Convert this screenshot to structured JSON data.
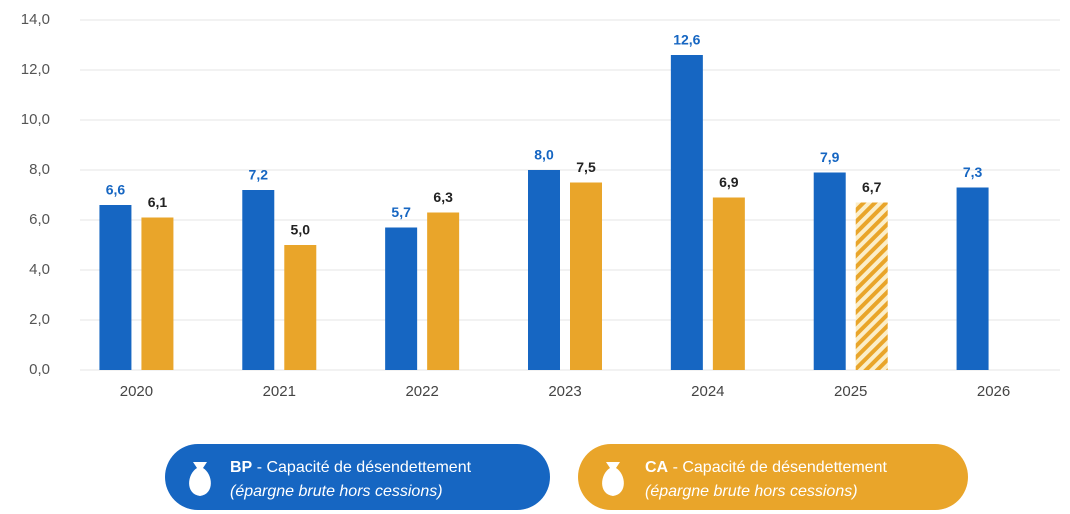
{
  "chart_data": {
    "type": "bar",
    "categories": [
      "2020",
      "2021",
      "2022",
      "2023",
      "2024",
      "2025",
      "2026"
    ],
    "series": [
      {
        "name": "BP",
        "description": "- Capacité de désendettement",
        "note": "(épargne brute hors cessions)",
        "color": "#1666c2",
        "label_color": "#1666c2",
        "values": [
          6.6,
          7.2,
          5.7,
          8.0,
          12.6,
          7.9,
          7.3
        ],
        "value_labels": [
          "6,6",
          "7,2",
          "5,7",
          "8,0",
          "12,6",
          "7,9",
          "7,3"
        ],
        "hatched": [
          false,
          false,
          false,
          false,
          false,
          false,
          false
        ]
      },
      {
        "name": "CA",
        "description": "- Capacité de désendettement",
        "note": "(épargne brute hors cessions)",
        "color": "#e9a52a",
        "label_color": "#222",
        "values": [
          6.1,
          5.0,
          6.3,
          7.5,
          6.9,
          6.7,
          null
        ],
        "value_labels": [
          "6,1",
          "5,0",
          "6,3",
          "7,5",
          "6,9",
          "6,7",
          null
        ],
        "hatched": [
          false,
          false,
          false,
          false,
          false,
          true,
          false
        ]
      }
    ],
    "ylim": [
      0,
      14
    ],
    "yticks": [
      {
        "value": 0,
        "label": "0,0"
      },
      {
        "value": 2,
        "label": "2,0"
      },
      {
        "value": 4,
        "label": "4,0"
      },
      {
        "value": 6,
        "label": "6,0"
      },
      {
        "value": 8,
        "label": "8,0"
      },
      {
        "value": 10,
        "label": "10,0"
      },
      {
        "value": 12,
        "label": "12,0"
      },
      {
        "value": 14,
        "label": "14,0"
      }
    ],
    "grid": true
  }
}
